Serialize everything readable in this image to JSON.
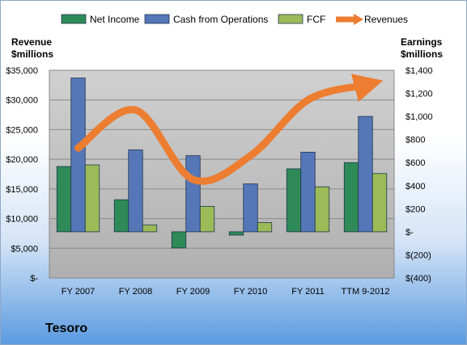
{
  "company": "Tesoro",
  "chart_data": {
    "type": "bar",
    "categories": [
      "FY 2007",
      "FY 2008",
      "FY 2009",
      "FY 2010",
      "FY 2011",
      "TTM 9-2012"
    ],
    "left_axis": {
      "title_line1": "Revenue",
      "title_line2": "$millions",
      "ylim": [
        0,
        35000
      ],
      "ticks": [
        "$-",
        "$5,000",
        "$10,000",
        "$15,000",
        "$20,000",
        "$25,000",
        "$30,000",
        "$35,000"
      ]
    },
    "right_axis": {
      "title_line1": "Earnings",
      "title_line2": "$millions",
      "ylim": [
        -400,
        1400
      ],
      "ticks": [
        "$(400)",
        "$(200)",
        "$-",
        "$200",
        "$400",
        "$600",
        "$800",
        "$1,000",
        "$1,200",
        "$1,400"
      ]
    },
    "series": [
      {
        "name": "Net Income",
        "axis": "right",
        "kind": "bar",
        "color": "#2e8b57",
        "values": [
          566,
          278,
          -140,
          -29,
          546,
          600
        ]
      },
      {
        "name": "Cash from Operations",
        "axis": "right",
        "kind": "bar",
        "color": "#5577b8",
        "values": [
          1333,
          710,
          660,
          415,
          690,
          1000
        ]
      },
      {
        "name": "FCF",
        "axis": "right",
        "kind": "bar",
        "color": "#9bbb59",
        "values": [
          580,
          60,
          220,
          80,
          390,
          505
        ]
      },
      {
        "name": "Revenues",
        "axis": "left",
        "kind": "line",
        "color": "#ed7d31",
        "values": [
          21900,
          28300,
          16600,
          20600,
          30000,
          32500
        ]
      }
    ],
    "legend_position": "top",
    "grid": true
  }
}
